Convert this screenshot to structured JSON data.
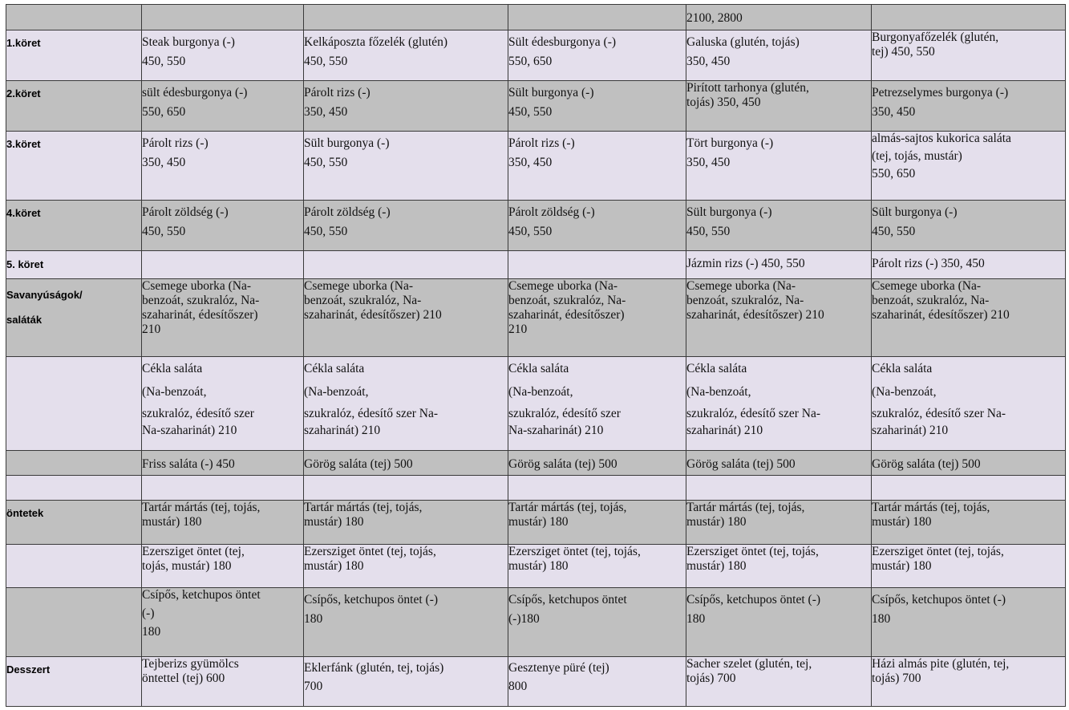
{
  "rows": [
    {
      "label": "",
      "cells": [
        [],
        [],
        [],
        [
          "2100, 2800"
        ],
        []
      ]
    },
    {
      "label": "1.köret",
      "cells": [
        [
          "Steak burgonya (-)",
          "450, 550"
        ],
        [
          "Kelkáposzta főzelék (glutén)",
          "450, 550"
        ],
        [
          "Sült édesburgonya (-)",
          "550, 650"
        ],
        [
          "Galuska (glutén, tojás)",
          "350, 450"
        ],
        [
          "Burgonyafőzelék (glutén,",
          "tej) 450, 550"
        ]
      ]
    },
    {
      "label": "2.köret",
      "cells": [
        [
          "sült édesburgonya (-)",
          "550, 650"
        ],
        [
          "Párolt rizs (-)",
          "350, 450"
        ],
        [
          "Sült burgonya (-)",
          "450, 550"
        ],
        [
          "Pirított tarhonya (glutén,",
          "tojás) 350, 450"
        ],
        [
          "Petrezselymes burgonya (-)",
          "350, 450"
        ]
      ]
    },
    {
      "label": "3.köret",
      "cells": [
        [
          "Párolt rizs (-)",
          "350, 450"
        ],
        [
          "Sült burgonya (-)",
          "450, 550"
        ],
        [
          "Párolt rizs (-)",
          "350, 450"
        ],
        [
          "Tört burgonya (-)",
          "350, 450"
        ],
        [
          "almás-sajtos kukorica saláta",
          "(tej, tojás, mustár)",
          "550, 650"
        ]
      ]
    },
    {
      "label": "4.köret",
      "cells": [
        [
          "Párolt zöldség (-)",
          "450, 550"
        ],
        [
          "Párolt zöldség (-)",
          "450, 550"
        ],
        [
          "Párolt zöldség (-)",
          "450, 550"
        ],
        [
          "Sült burgonya (-)",
          "450, 550"
        ],
        [
          "Sült burgonya (-)",
          "450, 550"
        ]
      ]
    },
    {
      "label": "5. köret",
      "cells": [
        [],
        [],
        [],
        [
          "Jázmin rizs (-) 450, 550"
        ],
        [
          "Párolt rizs (-) 350, 450"
        ]
      ]
    },
    {
      "label": "Savanyúságok/",
      "label2": "saláták",
      "cells": [
        [
          "Csemege uborka (Na-",
          "benzoát, szukralóz, Na-",
          "szaharinát, édesítőszer)",
          "210"
        ],
        [
          "Csemege uborka (Na-",
          "benzoát, szukralóz, Na-",
          "szaharinát, édesítőszer) 210"
        ],
        [
          "Csemege uborka (Na-",
          "benzoát, szukralóz, Na-",
          "szaharinát, édesítőszer)",
          "210"
        ],
        [
          "Csemege uborka (Na-",
          "benzoát, szukralóz, Na-",
          "szaharinát, édesítőszer) 210"
        ],
        [
          "Csemege uborka (Na-",
          "benzoát, szukralóz, Na-",
          "szaharinát, édesítőszer) 210"
        ]
      ]
    },
    {
      "label": "",
      "cells": [
        [
          "Cékla saláta",
          "(Na-benzoát,",
          "szukralóz, édesítő szer",
          "Na-szaharinát) 210"
        ],
        [
          "Cékla saláta",
          "(Na-benzoát,",
          "szukralóz, édesítő szer Na-",
          "szaharinát) 210"
        ],
        [
          "Cékla saláta",
          "(Na-benzoát,",
          "szukralóz, édesítő szer",
          "Na-szaharinát) 210"
        ],
        [
          "Cékla saláta",
          "(Na-benzoát,",
          "szukralóz, édesítő szer Na-",
          "szaharinát) 210"
        ],
        [
          "Cékla saláta",
          "(Na-benzoát,",
          "szukralóz, édesítő szer Na-",
          "szaharinát) 210"
        ]
      ]
    },
    {
      "label": "",
      "cells": [
        [
          "Friss saláta (-) 450"
        ],
        [
          "Görög saláta (tej) 500"
        ],
        [
          "Görög saláta (tej) 500"
        ],
        [
          "Görög saláta (tej) 500"
        ],
        [
          "Görög saláta (tej) 500"
        ]
      ]
    },
    {
      "label": "",
      "cells": [
        [],
        [],
        [],
        [],
        []
      ]
    },
    {
      "label": "öntetek",
      "cells": [
        [
          "Tartár mártás (tej, tojás,",
          "mustár) 180"
        ],
        [
          "Tartár mártás (tej, tojás,",
          "mustár) 180"
        ],
        [
          "Tartár mártás (tej, tojás,",
          "mustár) 180"
        ],
        [
          "Tartár mártás (tej, tojás,",
          "mustár) 180"
        ],
        [
          "Tartár mártás (tej, tojás,",
          "mustár) 180"
        ]
      ]
    },
    {
      "label": "",
      "cells": [
        [
          "Ezersziget öntet (tej,",
          "tojás, mustár) 180"
        ],
        [
          "Ezersziget öntet (tej, tojás,",
          "mustár) 180"
        ],
        [
          "Ezersziget öntet (tej, tojás,",
          "mustár) 180"
        ],
        [
          "Ezersziget öntet (tej, tojás,",
          "mustár) 180"
        ],
        [
          "Ezersziget öntet (tej, tojás,",
          "mustár) 180"
        ]
      ]
    },
    {
      "label": "",
      "cells": [
        [
          "Csípős, ketchupos öntet",
          "(-)",
          "180"
        ],
        [
          "Csípős, ketchupos öntet (-)",
          "180"
        ],
        [
          "Csípős, ketchupos öntet",
          "(-)180"
        ],
        [
          "Csípős, ketchupos öntet (-)",
          "180"
        ],
        [
          "Csípős, ketchupos öntet (-)",
          "180"
        ]
      ]
    },
    {
      "label": "Desszert",
      "cells": [
        [
          "Tejberizs gyümölcs",
          "öntettel (tej) 600"
        ],
        [
          "Eklerfánk (glutén, tej, tojás)",
          "700"
        ],
        [
          "Gesztenye püré (tej)",
          "800"
        ],
        [
          "Sacher szelet (glutén, tej,",
          "tojás) 700"
        ],
        [
          "Házi almás pite (glutén, tej,",
          "tojás) 700"
        ]
      ]
    }
  ]
}
